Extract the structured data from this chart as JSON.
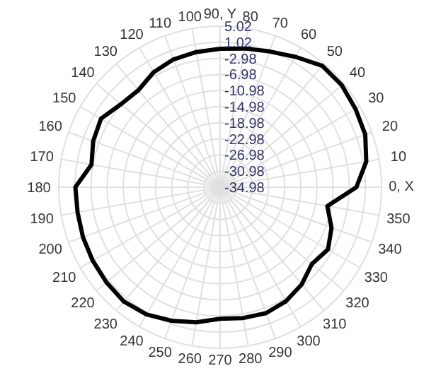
{
  "chart_data": {
    "type": "radar",
    "categories": [
      "90, Y",
      "80",
      "70",
      "60",
      "50",
      "40",
      "30",
      "20",
      "10",
      "0, X",
      "350",
      "340",
      "330",
      "320",
      "310",
      "300",
      "290",
      "280",
      "270",
      "260",
      "250",
      "240",
      "230",
      "220",
      "210",
      "200",
      "190",
      "180",
      "170",
      "160",
      "150",
      "140",
      "130",
      "120",
      "110",
      "100"
    ],
    "ylim": [
      -34.98,
      5.02
    ],
    "yticks": [
      5.02,
      1.02,
      -2.98,
      -6.98,
      -10.98,
      -14.98,
      -18.98,
      -22.98,
      -26.98,
      -30.98,
      -34.98
    ],
    "grid": true,
    "line_style": "solid",
    "marker": "none",
    "series": [
      {
        "color": "#000000",
        "values": [
          -0.6,
          0.0,
          0.9,
          2.4,
          4.4,
          4.4,
          3.8,
          3.3,
          1.8,
          -1.2,
          -8.0,
          -5.6,
          -4.1,
          -5.3,
          -3.5,
          -2.3,
          -1.7,
          -2.0,
          -2.3,
          -0.9,
          0.3,
          1.5,
          2.1,
          1.8,
          1.5,
          1.2,
          0.9,
          0.9,
          -2.6,
          -1.5,
          -0.9,
          -2.9,
          -3.5,
          -2.0,
          -1.2,
          -0.9
        ]
      }
    ]
  }
}
